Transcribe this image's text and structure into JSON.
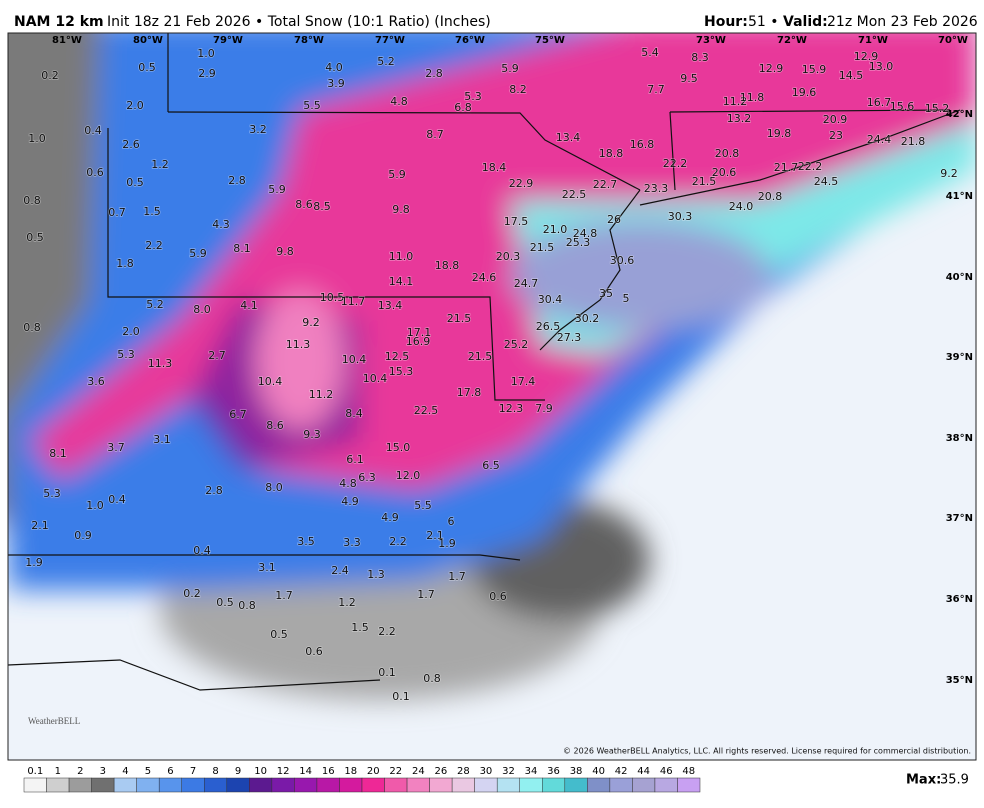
{
  "header": {
    "model": "NAM 12 km",
    "description": "Init 18z 21 Feb 2026 • Total Snow (10:1 Ratio) (Inches)",
    "hour_label": "Hour:",
    "hour": "51 •",
    "valid_label": "Valid:",
    "valid": "21z Mon 23 Feb 2026"
  },
  "lon_labels": [
    "81°W",
    "80°W",
    "79°W",
    "78°W",
    "77°W",
    "76°W",
    "75°W",
    "73°W",
    "72°W",
    "71°W",
    "70°W"
  ],
  "lat_labels": [
    "42°N",
    "41°N",
    "40°N",
    "39°N",
    "38°N",
    "37°N",
    "36°N",
    "35°N"
  ],
  "map_labels": [
    "0.2",
    "0.5",
    "1.0",
    "2.9",
    "4.0",
    "3.9",
    "5.2",
    "2.8",
    "5.9",
    "8.2",
    "5.3",
    "6.8",
    "4.8",
    "5.5",
    "2.0",
    "1.0",
    "0.4",
    "3.2",
    "8.7",
    "13.4",
    "18.8",
    "16.8",
    "7.7",
    "5.4",
    "8.3",
    "9.5",
    "12.9",
    "15.9",
    "14.5",
    "12.9",
    "13.0",
    "19.6",
    "11.2",
    "11.8",
    "16.7",
    "15.6",
    "15.2",
    "13.2",
    "19.8",
    "20.9",
    "23",
    "24.4",
    "21.8",
    "2.6",
    "1.2",
    "0.6",
    "0.5",
    "2.8",
    "5.9",
    "18.4",
    "5.9",
    "22.9",
    "22.7",
    "22.5",
    "22.2",
    "20.8",
    "21.5",
    "20.6",
    "21.7",
    "22.2",
    "24.5",
    "24.0",
    "20.8",
    "23.3",
    "9.2",
    "0.8",
    "0.7",
    "1.5",
    "8.6",
    "8.5",
    "9.8",
    "4.3",
    "17.5",
    "21.0",
    "26",
    "30.3",
    "0.5",
    "2.2",
    "8.1",
    "9.8",
    "5.9",
    "11.0",
    "18.8",
    "20.3",
    "21.5",
    "24.8",
    "25.3",
    "30.6",
    "1.8",
    "14.1",
    "24.6",
    "24.7",
    "10.5",
    "11.7",
    "13.4",
    "30.4",
    "35",
    "5",
    "5.2",
    "8.0",
    "4.1",
    "9.2",
    "0.8",
    "2.0",
    "17.1",
    "21.5",
    "16.9",
    "26.5",
    "30.2",
    "27.3",
    "25.2",
    "11.3",
    "5.3",
    "11.3",
    "2.7",
    "10.4",
    "12.5",
    "15.3",
    "21.5",
    "10.4",
    "3.6",
    "10.4",
    "11.2",
    "17.8",
    "17.4",
    "12.3",
    "7.9",
    "6.7",
    "8.4",
    "22.5",
    "8.6",
    "9.3",
    "3.1",
    "3.7",
    "15.0",
    "8.1",
    "6.1",
    "6.5",
    "12.0",
    "6.3",
    "4.8",
    "8.0",
    "2.8",
    "5.3",
    "0.4",
    "1.0",
    "4.9",
    "5.5",
    "4.9",
    "6",
    "2.1",
    "1.9",
    "2.1",
    "0.9",
    "3.5",
    "3.3",
    "2.2",
    "0.4",
    "1.9",
    "3.1",
    "2.4",
    "1.3",
    "1.7",
    "0.2",
    "0.5",
    "0.8",
    "1.7",
    "1.2",
    "1.7",
    "0.6",
    "1.5",
    "2.2",
    "0.5",
    "0.6",
    "0.1",
    "0.8",
    "0.1"
  ],
  "logo": "WeatherBELL",
  "copyright": "© 2026 WeatherBELL Analytics, LLC. All rights reserved. License required for commercial distribution.",
  "colorbar": {
    "labels": [
      0.1,
      1,
      2,
      3,
      4,
      5,
      6,
      7,
      8,
      9,
      10,
      12,
      14,
      16,
      18,
      20,
      22,
      24,
      26,
      28,
      30,
      32,
      34,
      36,
      38,
      40,
      42,
      44,
      46,
      48
    ],
    "colors": [
      "#f4f4f4",
      "#cfcfcf",
      "#9c9c9c",
      "#707070",
      "#a9cbf2",
      "#80b1f0",
      "#5894ec",
      "#3c7ae4",
      "#2a5fd0",
      "#1c44b0",
      "#5c1a90",
      "#7a1aa8",
      "#9818ae",
      "#b818a6",
      "#d41a9e",
      "#ee2896",
      "#f05aaa",
      "#f282c0",
      "#f2a8d2",
      "#eac8e2",
      "#d4d4f2",
      "#b4e2f2",
      "#92f0f0",
      "#62dada",
      "#44bccc",
      "#7f90c8",
      "#9aa0d8",
      "#a6a2d2",
      "#b8a8e2",
      "#c8a0f2"
    ]
  },
  "max_label": "Max:",
  "max_value": "35.9"
}
